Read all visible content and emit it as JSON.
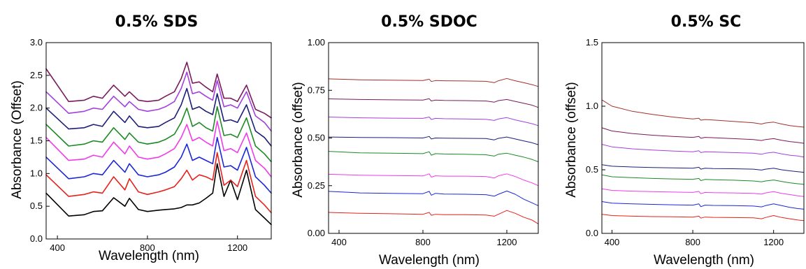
{
  "chart_data": [
    {
      "type": "line",
      "title": "0.5% SDS",
      "xlabel": "Wavelength (nm)",
      "ylabel": "Absorbance (Offset)",
      "xlim": [
        350,
        1350
      ],
      "ylim": [
        0.0,
        3.0
      ],
      "xticks": [
        "400",
        "800",
        "1200"
      ],
      "yticks": [
        "0.0",
        "0.5",
        "1.0",
        "1.5",
        "2.0",
        "2.5",
        "3.0"
      ],
      "x": [
        350,
        450,
        520,
        560,
        600,
        650,
        700,
        720,
        760,
        800,
        850,
        880,
        920,
        950,
        975,
        1000,
        1030,
        1060,
        1090,
        1110,
        1140,
        1170,
        1200,
        1240,
        1280,
        1320,
        1350
      ],
      "series": [
        {
          "color": "#000000",
          "values": [
            0.7,
            0.35,
            0.37,
            0.42,
            0.43,
            0.63,
            0.5,
            0.62,
            0.45,
            0.42,
            0.44,
            0.45,
            0.46,
            0.48,
            0.52,
            0.52,
            0.55,
            0.62,
            0.7,
            1.15,
            0.65,
            0.9,
            0.6,
            1.05,
            0.45,
            0.32,
            0.22
          ]
        },
        {
          "color": "#e8211b",
          "values": [
            0.98,
            0.65,
            0.68,
            0.72,
            0.7,
            0.95,
            0.75,
            0.92,
            0.72,
            0.68,
            0.72,
            0.75,
            0.8,
            0.92,
            1.05,
            0.9,
            0.98,
            0.95,
            0.9,
            1.32,
            0.82,
            0.9,
            0.8,
            1.2,
            0.65,
            0.52,
            0.4
          ]
        },
        {
          "color": "#1b27d6",
          "values": [
            1.25,
            0.92,
            0.95,
            1.0,
            0.98,
            1.2,
            1.02,
            1.15,
            0.98,
            0.95,
            0.98,
            1.02,
            1.1,
            1.25,
            1.45,
            1.2,
            1.25,
            1.2,
            1.15,
            1.55,
            1.1,
            1.12,
            1.05,
            1.4,
            0.95,
            0.82,
            0.7
          ]
        },
        {
          "color": "#f03be8",
          "values": [
            1.55,
            1.2,
            1.22,
            1.28,
            1.25,
            1.48,
            1.3,
            1.42,
            1.25,
            1.22,
            1.25,
            1.3,
            1.38,
            1.55,
            1.75,
            1.5,
            1.55,
            1.48,
            1.42,
            1.8,
            1.35,
            1.38,
            1.32,
            1.62,
            1.2,
            1.08,
            0.95
          ]
        },
        {
          "color": "#1c8a24",
          "values": [
            1.75,
            1.42,
            1.45,
            1.5,
            1.48,
            1.7,
            1.52,
            1.62,
            1.48,
            1.45,
            1.48,
            1.52,
            1.6,
            1.78,
            2.0,
            1.72,
            1.78,
            1.7,
            1.65,
            2.02,
            1.58,
            1.6,
            1.55,
            1.85,
            1.42,
            1.3,
            1.18
          ]
        },
        {
          "color": "#1c1e7a",
          "values": [
            2.0,
            1.68,
            1.7,
            1.75,
            1.72,
            1.95,
            1.78,
            1.88,
            1.72,
            1.7,
            1.72,
            1.78,
            1.85,
            2.05,
            2.3,
            1.98,
            2.02,
            1.95,
            1.9,
            2.22,
            1.8,
            1.82,
            1.78,
            2.05,
            1.65,
            1.55,
            1.42
          ]
        },
        {
          "color": "#a33fe0",
          "values": [
            2.25,
            1.92,
            1.95,
            2.0,
            1.98,
            2.18,
            2.02,
            2.1,
            1.98,
            1.95,
            1.98,
            2.02,
            2.1,
            2.3,
            2.55,
            2.22,
            2.25,
            2.18,
            2.12,
            2.42,
            2.02,
            2.05,
            2.0,
            2.25,
            1.88,
            1.78,
            1.65
          ]
        },
        {
          "color": "#7a1a5c",
          "values": [
            2.6,
            2.1,
            2.12,
            2.18,
            2.15,
            2.35,
            2.18,
            2.25,
            2.12,
            2.1,
            2.12,
            2.18,
            2.25,
            2.45,
            2.7,
            2.38,
            2.4,
            2.32,
            2.25,
            2.52,
            2.15,
            2.15,
            2.1,
            2.35,
            1.98,
            1.92,
            1.85
          ]
        }
      ]
    },
    {
      "type": "line",
      "title": "0.5% SDOC",
      "xlabel": "Wavelength (nm)",
      "ylabel": "Absorbance (offset)",
      "xlim": [
        350,
        1350
      ],
      "ylim": [
        0.0,
        1.0
      ],
      "xticks": [
        "400",
        "800",
        "1200"
      ],
      "yticks": [
        "0.00",
        "0.25",
        "0.50",
        "0.75",
        "1.00"
      ],
      "x": [
        350,
        500,
        650,
        800,
        830,
        840,
        860,
        900,
        1000,
        1100,
        1140,
        1160,
        1200,
        1240,
        1280,
        1320,
        1350
      ],
      "series": [
        {
          "color": "#e8211b",
          "values": [
            0.11,
            0.105,
            0.103,
            0.1,
            0.11,
            0.095,
            0.1,
            0.098,
            0.098,
            0.096,
            0.09,
            0.1,
            0.12,
            0.105,
            0.085,
            0.07,
            0.05
          ]
        },
        {
          "color": "#1b27d6",
          "values": [
            0.22,
            0.212,
            0.21,
            0.208,
            0.22,
            0.2,
            0.21,
            0.206,
            0.205,
            0.203,
            0.195,
            0.205,
            0.222,
            0.205,
            0.18,
            0.16,
            0.145
          ]
        },
        {
          "color": "#f03be8",
          "values": [
            0.31,
            0.305,
            0.303,
            0.301,
            0.312,
            0.295,
            0.302,
            0.3,
            0.3,
            0.298,
            0.29,
            0.302,
            0.312,
            0.298,
            0.28,
            0.265,
            0.25
          ]
        },
        {
          "color": "#1c8a24",
          "values": [
            0.43,
            0.422,
            0.42,
            0.418,
            0.428,
            0.41,
            0.418,
            0.416,
            0.415,
            0.412,
            0.405,
            0.415,
            0.42,
            0.41,
            0.4,
            0.388,
            0.375
          ]
        },
        {
          "color": "#1c1e7a",
          "values": [
            0.505,
            0.503,
            0.502,
            0.5,
            0.508,
            0.495,
            0.5,
            0.499,
            0.498,
            0.497,
            0.49,
            0.498,
            0.505,
            0.495,
            0.485,
            0.475,
            0.465
          ]
        },
        {
          "color": "#a33fe0",
          "values": [
            0.61,
            0.606,
            0.604,
            0.603,
            0.61,
            0.597,
            0.603,
            0.601,
            0.6,
            0.598,
            0.592,
            0.6,
            0.607,
            0.595,
            0.585,
            0.575,
            0.565
          ]
        },
        {
          "color": "#7a1a5c",
          "values": [
            0.705,
            0.702,
            0.7,
            0.699,
            0.706,
            0.694,
            0.699,
            0.697,
            0.696,
            0.694,
            0.688,
            0.696,
            0.702,
            0.692,
            0.682,
            0.672,
            0.66
          ]
        },
        {
          "color": "#a0322a",
          "values": [
            0.81,
            0.805,
            0.803,
            0.801,
            0.808,
            0.796,
            0.801,
            0.8,
            0.799,
            0.797,
            0.79,
            0.8,
            0.812,
            0.8,
            0.79,
            0.78,
            0.77
          ]
        }
      ]
    },
    {
      "type": "line",
      "title": "0.5% SC",
      "xlabel": "Wavelength (nm)",
      "ylabel": "Absorbance (offset)",
      "xlim": [
        350,
        1350
      ],
      "ylim": [
        0.0,
        1.5
      ],
      "xticks": [
        "400",
        "800",
        "1200"
      ],
      "yticks": [
        "0.0",
        "0.5",
        "1.0",
        "1.5"
      ],
      "x": [
        350,
        400,
        500,
        600,
        700,
        800,
        830,
        840,
        860,
        900,
        1000,
        1100,
        1140,
        1160,
        1200,
        1240,
        1280,
        1320,
        1350
      ],
      "series": [
        {
          "color": "#e8211b",
          "values": [
            0.15,
            0.14,
            0.135,
            0.132,
            0.13,
            0.128,
            0.135,
            0.12,
            0.128,
            0.126,
            0.124,
            0.122,
            0.115,
            0.125,
            0.14,
            0.125,
            0.115,
            0.105,
            0.1
          ]
        },
        {
          "color": "#1b27d6",
          "values": [
            0.25,
            0.238,
            0.232,
            0.228,
            0.225,
            0.222,
            0.232,
            0.21,
            0.222,
            0.22,
            0.218,
            0.215,
            0.208,
            0.218,
            0.232,
            0.218,
            0.205,
            0.195,
            0.19
          ]
        },
        {
          "color": "#f03be8",
          "values": [
            0.35,
            0.338,
            0.332,
            0.328,
            0.325,
            0.322,
            0.33,
            0.312,
            0.322,
            0.32,
            0.318,
            0.315,
            0.308,
            0.318,
            0.328,
            0.315,
            0.305,
            0.295,
            0.29
          ]
        },
        {
          "color": "#1c8a24",
          "values": [
            0.46,
            0.445,
            0.438,
            0.432,
            0.428,
            0.425,
            0.432,
            0.415,
            0.424,
            0.422,
            0.418,
            0.412,
            0.405,
            0.412,
            0.42,
            0.408,
            0.398,
            0.39,
            0.385
          ]
        },
        {
          "color": "#1c1e7a",
          "values": [
            0.54,
            0.528,
            0.522,
            0.518,
            0.515,
            0.512,
            0.52,
            0.505,
            0.512,
            0.51,
            0.508,
            0.505,
            0.498,
            0.505,
            0.512,
            0.5,
            0.492,
            0.485,
            0.48
          ]
        },
        {
          "color": "#a33fe0",
          "values": [
            0.7,
            0.68,
            0.665,
            0.655,
            0.648,
            0.642,
            0.65,
            0.635,
            0.642,
            0.64,
            0.635,
            0.63,
            0.622,
            0.63,
            0.638,
            0.625,
            0.615,
            0.608,
            0.6
          ]
        },
        {
          "color": "#7a1a5c",
          "values": [
            0.83,
            0.805,
            0.785,
            0.772,
            0.762,
            0.755,
            0.762,
            0.748,
            0.755,
            0.752,
            0.745,
            0.738,
            0.73,
            0.738,
            0.745,
            0.732,
            0.722,
            0.715,
            0.708
          ]
        },
        {
          "color": "#a0322a",
          "values": [
            1.05,
            1.0,
            0.96,
            0.935,
            0.915,
            0.9,
            0.905,
            0.89,
            0.895,
            0.892,
            0.88,
            0.87,
            0.86,
            0.868,
            0.875,
            0.86,
            0.848,
            0.84,
            0.835
          ]
        }
      ]
    }
  ]
}
